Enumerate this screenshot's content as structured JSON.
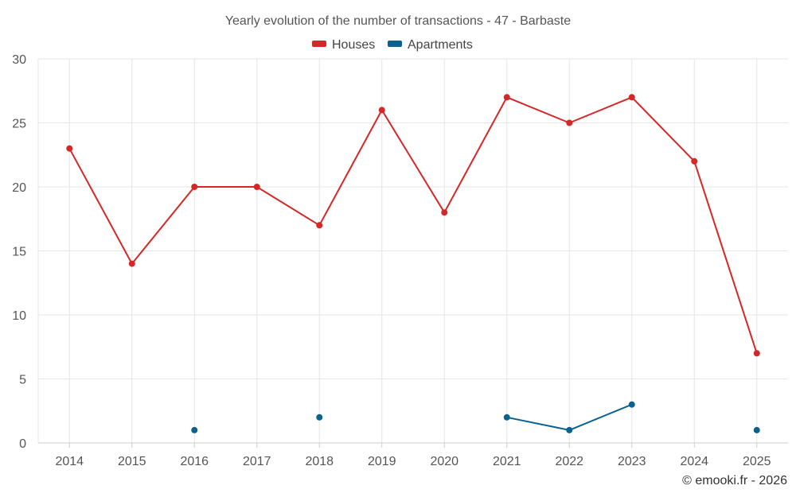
{
  "chart_data": {
    "type": "line",
    "title": "Yearly evolution of the number of transactions - 47 - Barbaste",
    "categories": [
      "2014",
      "2015",
      "2016",
      "2017",
      "2018",
      "2019",
      "2020",
      "2021",
      "2022",
      "2023",
      "2024",
      "2025"
    ],
    "series": [
      {
        "name": "Houses",
        "color": "#d62728",
        "values": [
          23,
          14,
          20,
          20,
          17,
          26,
          18,
          27,
          25,
          27,
          22,
          7
        ]
      },
      {
        "name": "Apartments",
        "color": "#08628f",
        "values": [
          null,
          null,
          1,
          null,
          2,
          null,
          null,
          2,
          1,
          3,
          null,
          1
        ]
      }
    ],
    "ylim": [
      0,
      30
    ],
    "yticks": [
      0,
      5,
      10,
      15,
      20,
      25,
      30
    ],
    "xlabel": "",
    "ylabel": "",
    "legend": "top-center",
    "grid": true
  },
  "credit": "© emooki.fr - 2026"
}
